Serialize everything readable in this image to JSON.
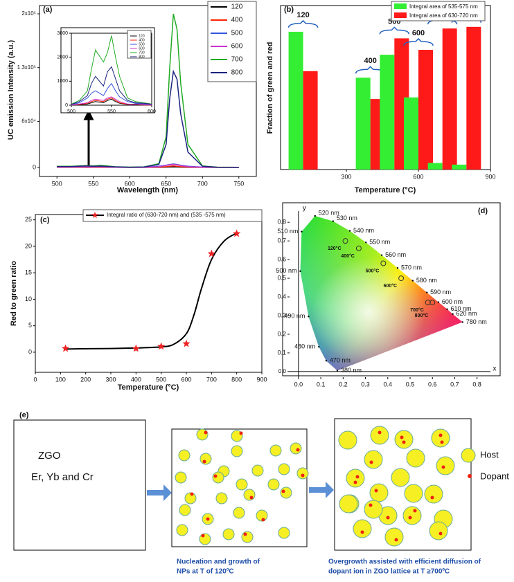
{
  "chart_data": [
    {
      "type": "line",
      "panel": "(a)",
      "x_label": "Wavelength (nm)",
      "y_label": "UC emission Intensity (a.u.)",
      "x": [
        500,
        520,
        540,
        550,
        560,
        580,
        600,
        620,
        640,
        650,
        655,
        660,
        665,
        670,
        680,
        700,
        720,
        750
      ],
      "series": [
        {
          "name": "120",
          "color": "#000000",
          "values": [
            200,
            200,
            300,
            300,
            300,
            200,
            100,
            100,
            300,
            500,
            700,
            800,
            700,
            500,
            300,
            100,
            100,
            100
          ]
        },
        {
          "name": "400",
          "color": "#ff2200",
          "values": [
            300,
            300,
            500,
            400,
            500,
            200,
            100,
            200,
            500,
            1000,
            1500,
            2000,
            1500,
            1000,
            500,
            200,
            100,
            100
          ]
        },
        {
          "name": "500",
          "color": "#3355dd",
          "values": [
            800,
            800,
            1200,
            1000,
            1300,
            500,
            300,
            500,
            1500,
            3000,
            4000,
            4500,
            4000,
            3000,
            1500,
            500,
            300,
            200
          ]
        },
        {
          "name": "600",
          "color": "#cc33cc",
          "values": [
            500,
            500,
            800,
            700,
            900,
            300,
            200,
            300,
            1000,
            2500,
            3500,
            4000,
            3500,
            2500,
            1000,
            300,
            200,
            100
          ]
        },
        {
          "name": "700",
          "color": "#22aa22",
          "values": [
            1500,
            1500,
            2500,
            2000,
            2800,
            1000,
            500,
            800,
            5000,
            40000,
            130000,
            200000,
            180000,
            110000,
            30000,
            2000,
            500,
            300
          ]
        },
        {
          "name": "800",
          "color": "#1a237e",
          "values": [
            1200,
            1200,
            2000,
            1500,
            1800,
            800,
            400,
            700,
            4000,
            30000,
            90000,
            125000,
            115000,
            70000,
            20000,
            1500,
            400,
            300
          ]
        }
      ],
      "xlim": [
        476,
        774
      ],
      "xticks": [
        500,
        550,
        600,
        650,
        700,
        750
      ],
      "ylim": [
        -11700,
        210800
      ],
      "yticks": [
        0,
        {
          "value": 60000,
          "label": "6x10⁴"
        },
        {
          "value": 130000,
          "label": "1.3x10⁵"
        },
        {
          "value": 200000,
          "label": "2x10⁵"
        }
      ]
    },
    {
      "type": "line",
      "x": [
        500,
        510,
        520,
        525,
        530,
        540,
        545,
        550,
        555,
        560,
        570,
        580,
        590,
        600
      ],
      "series": [
        {
          "name": "120",
          "color": "#000000",
          "values": [
            5,
            20,
            50,
            100,
            150,
            100,
            200,
            250,
            150,
            80,
            30,
            50,
            30,
            10
          ]
        },
        {
          "name": "400",
          "color": "#ff2200",
          "values": [
            10,
            30,
            80,
            150,
            200,
            150,
            250,
            300,
            200,
            100,
            40,
            20,
            10,
            10
          ]
        },
        {
          "name": "500",
          "color": "#3355dd",
          "values": [
            20,
            100,
            300,
            500,
            600,
            400,
            700,
            900,
            600,
            350,
            150,
            80,
            50,
            30
          ]
        },
        {
          "name": "600",
          "color": "#cc33cc",
          "values": [
            10,
            50,
            100,
            200,
            250,
            200,
            300,
            350,
            250,
            150,
            50,
            30,
            20,
            10
          ]
        },
        {
          "name": "700",
          "color": "#22aa22",
          "values": [
            50,
            200,
            600,
            1500,
            2300,
            1800,
            2200,
            2900,
            2000,
            1200,
            300,
            150,
            100,
            50
          ]
        },
        {
          "name": "800",
          "color": "#1a237e",
          "values": [
            30,
            150,
            400,
            900,
            1200,
            800,
            1400,
            1600,
            1100,
            600,
            200,
            100,
            80,
            40
          ]
        }
      ],
      "xlim": [
        500,
        600
      ],
      "xticks": [
        500,
        550,
        600
      ],
      "ylim": [
        0,
        3000
      ],
      "yticks": [
        0,
        1000,
        2000,
        3000
      ]
    },
    {
      "type": "bar",
      "panel": "(b)",
      "x_label": "Temperature (°C)",
      "y_label": "Fraction of green and red",
      "x": [
        120,
        400,
        500,
        600,
        700,
        800
      ],
      "series": [
        {
          "name": "Integral area of 535-575 nm",
          "color": "#33ee33",
          "values": [
            0.84,
            0.56,
            0.7,
            0.44,
            0.04,
            0.03
          ]
        },
        {
          "name": "Integral area of 630-720 nm",
          "color": "#ff1a1a",
          "values": [
            0.6,
            0.43,
            0.8,
            0.73,
            0.86,
            0.87
          ]
        }
      ],
      "xlim": [
        26,
        900
      ],
      "xticks": [
        300,
        600,
        900
      ],
      "ylim": [
        0,
        1
      ]
    },
    {
      "type": "scatter",
      "panel": "(c)",
      "x_label": "Temperature (°C)",
      "y_label": "Red to green ratio",
      "x": [
        120,
        400,
        500,
        600,
        700,
        800
      ],
      "series": [
        {
          "name": "Integral ratio of (630-720 nm) and (535 -575 nm)",
          "color": "#ee2222",
          "values": [
            0.7,
            0.7,
            1.1,
            1.6,
            18.6,
            22.4
          ]
        }
      ],
      "fit": {
        "color": "#000000",
        "x": [
          120,
          200,
          300,
          400,
          500,
          550,
          600,
          630,
          660,
          700,
          750,
          800
        ],
        "values": [
          0.6,
          0.65,
          0.7,
          0.8,
          1.0,
          1.5,
          3.5,
          7,
          12,
          17.5,
          21,
          22.5
        ]
      },
      "xlim": [
        0,
        900
      ],
      "xticks": [
        0,
        100,
        200,
        300,
        400,
        500,
        600,
        700,
        800,
        900
      ],
      "ylim": [
        -3.8,
        26
      ],
      "yticks": [
        0,
        5,
        10,
        15,
        20,
        25
      ]
    },
    {
      "type": "cie",
      "panel": "(d)",
      "x_label": "x",
      "y_label": "y",
      "xlim": [
        -0.04,
        0.86
      ],
      "ylim": [
        -0.03,
        0.86
      ],
      "xticks": [
        {
          "value": 0,
          "label": "0.0"
        },
        0.1,
        0.2,
        0.3,
        0.4,
        0.5,
        0.6,
        0.7,
        {
          "value": 0.8,
          "label": "0.8"
        }
      ],
      "yticks": [
        {
          "value": 0,
          "label": "0.0"
        },
        0.1,
        0.2,
        0.3,
        0.4,
        0.5,
        0.6,
        0.7,
        0.8
      ],
      "locus": [
        {
          "label": "380 nm",
          "x": 0.174,
          "y": 0.005
        },
        {
          "label": "470 nm",
          "x": 0.124,
          "y": 0.058
        },
        {
          "label": "480 nm",
          "x": 0.091,
          "y": 0.133
        },
        {
          "label": "490 nm",
          "x": 0.045,
          "y": 0.295
        },
        {
          "label": "500 nm",
          "x": 0.008,
          "y": 0.538
        },
        {
          "label": "510 nm",
          "x": 0.014,
          "y": 0.75
        },
        {
          "label": "520 nm",
          "x": 0.074,
          "y": 0.834
        },
        {
          "label": "530 nm",
          "x": 0.155,
          "y": 0.806
        },
        {
          "label": "540 nm",
          "x": 0.23,
          "y": 0.754
        },
        {
          "label": "550 nm",
          "x": 0.302,
          "y": 0.692
        },
        {
          "label": "560 nm",
          "x": 0.373,
          "y": 0.624
        },
        {
          "label": "570 nm",
          "x": 0.444,
          "y": 0.555
        },
        {
          "label": "580 nm",
          "x": 0.512,
          "y": 0.487
        },
        {
          "label": "590 nm",
          "x": 0.575,
          "y": 0.424
        },
        {
          "label": "600 nm",
          "x": 0.627,
          "y": 0.372
        },
        {
          "label": "610 nm",
          "x": 0.666,
          "y": 0.334
        },
        {
          "label": "620 nm",
          "x": 0.691,
          "y": 0.308
        },
        {
          "label": "780 nm",
          "x": 0.735,
          "y": 0.265
        }
      ],
      "points": [
        {
          "label": "120°C",
          "x": 0.21,
          "y": 0.7
        },
        {
          "label": "400°C",
          "x": 0.27,
          "y": 0.66
        },
        {
          "label": "500°C",
          "x": 0.38,
          "y": 0.58
        },
        {
          "label": "600°C",
          "x": 0.46,
          "y": 0.5
        },
        {
          "label": "700°C",
          "x": 0.58,
          "y": 0.37
        },
        {
          "label": "800°C",
          "x": 0.6,
          "y": 0.37
        }
      ]
    }
  ],
  "schematic": {
    "panel": "(e)",
    "material": "ZGO",
    "dopants": "Er, Yb and Cr",
    "legend": [
      "Host",
      "Dopant"
    ],
    "captions": [
      [
        "Nucleation and growth of",
        "NPs at T of 120ºC"
      ],
      [
        "Overgrowth assisted with efficient diffusion of",
        "dopant ion in ZGO lattice at  T ≥700ºC"
      ]
    ]
  }
}
